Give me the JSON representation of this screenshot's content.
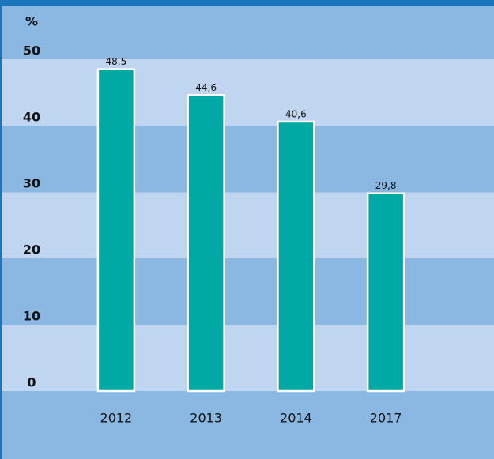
{
  "chart_data": {
    "type": "bar",
    "y_label": "%",
    "categories": [
      "2012",
      "2013",
      "2014",
      "2017"
    ],
    "values": [
      48.5,
      44.6,
      40.6,
      29.8
    ],
    "value_labels": [
      "48,5",
      "44,6",
      "40,6",
      "29,8"
    ],
    "color": "#00a9a4",
    "ylim": [
      0,
      50
    ],
    "yticks": [
      0,
      10,
      20,
      30,
      40,
      50
    ],
    "grid": true
  }
}
